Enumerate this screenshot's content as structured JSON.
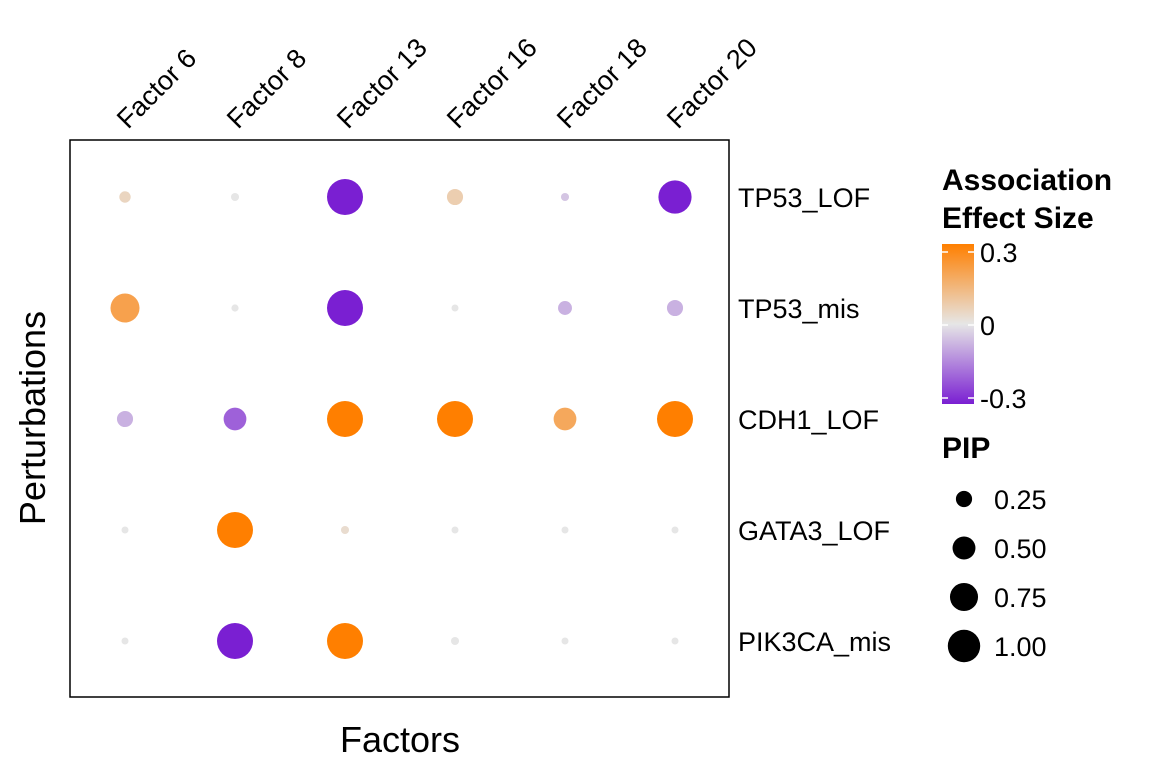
{
  "chart_data": {
    "type": "scatter",
    "subtype": "dot-matrix",
    "x_categories": [
      "Factor 6",
      "Factor 8",
      "Factor 13",
      "Factor 16",
      "Factor 18",
      "Factor 20"
    ],
    "y_categories": [
      "TP53_LOF",
      "TP53_mis",
      "CDH1_LOF",
      "GATA3_LOF",
      "PIK3CA_mis"
    ],
    "xlabel": "Factors",
    "ylabel": "Perturbations",
    "x_axis_position": "top",
    "y_axis_position": "right",
    "grid": false,
    "points": [
      {
        "x": "Factor 6",
        "y": "TP53_LOF",
        "effect": 0.05,
        "pip": 0.1
      },
      {
        "x": "Factor 8",
        "y": "TP53_LOF",
        "effect": 0.0,
        "pip": 0.05
      },
      {
        "x": "Factor 13",
        "y": "TP53_LOF",
        "effect": -0.3,
        "pip": 1.0
      },
      {
        "x": "Factor 16",
        "y": "TP53_LOF",
        "effect": 0.07,
        "pip": 0.2
      },
      {
        "x": "Factor 18",
        "y": "TP53_LOF",
        "effect": -0.05,
        "pip": 0.05
      },
      {
        "x": "Factor 20",
        "y": "TP53_LOF",
        "effect": -0.3,
        "pip": 0.85
      },
      {
        "x": "Factor 6",
        "y": "TP53_mis",
        "effect": 0.2,
        "pip": 0.65
      },
      {
        "x": "Factor 8",
        "y": "TP53_mis",
        "effect": 0.0,
        "pip": 0.04
      },
      {
        "x": "Factor 13",
        "y": "TP53_mis",
        "effect": -0.3,
        "pip": 1.0
      },
      {
        "x": "Factor 16",
        "y": "TP53_mis",
        "effect": 0.0,
        "pip": 0.03
      },
      {
        "x": "Factor 18",
        "y": "TP53_mis",
        "effect": -0.08,
        "pip": 0.15
      },
      {
        "x": "Factor 20",
        "y": "TP53_mis",
        "effect": -0.08,
        "pip": 0.2
      },
      {
        "x": "Factor 6",
        "y": "CDH1_LOF",
        "effect": -0.08,
        "pip": 0.2
      },
      {
        "x": "Factor 8",
        "y": "CDH1_LOF",
        "effect": -0.2,
        "pip": 0.4
      },
      {
        "x": "Factor 13",
        "y": "CDH1_LOF",
        "effect": 0.3,
        "pip": 1.0
      },
      {
        "x": "Factor 16",
        "y": "CDH1_LOF",
        "effect": 0.3,
        "pip": 1.0
      },
      {
        "x": "Factor 18",
        "y": "CDH1_LOF",
        "effect": 0.18,
        "pip": 0.4
      },
      {
        "x": "Factor 20",
        "y": "CDH1_LOF",
        "effect": 0.3,
        "pip": 1.0
      },
      {
        "x": "Factor 6",
        "y": "GATA3_LOF",
        "effect": 0.0,
        "pip": 0.03
      },
      {
        "x": "Factor 8",
        "y": "GATA3_LOF",
        "effect": 0.3,
        "pip": 1.0
      },
      {
        "x": "Factor 13",
        "y": "GATA3_LOF",
        "effect": 0.03,
        "pip": 0.05
      },
      {
        "x": "Factor 16",
        "y": "GATA3_LOF",
        "effect": 0.0,
        "pip": 0.03
      },
      {
        "x": "Factor 18",
        "y": "GATA3_LOF",
        "effect": 0.0,
        "pip": 0.03
      },
      {
        "x": "Factor 20",
        "y": "GATA3_LOF",
        "effect": 0.0,
        "pip": 0.03
      },
      {
        "x": "Factor 6",
        "y": "PIK3CA_mis",
        "effect": 0.0,
        "pip": 0.03
      },
      {
        "x": "Factor 8",
        "y": "PIK3CA_mis",
        "effect": -0.3,
        "pip": 1.0
      },
      {
        "x": "Factor 13",
        "y": "PIK3CA_mis",
        "effect": 0.3,
        "pip": 1.0
      },
      {
        "x": "Factor 16",
        "y": "PIK3CA_mis",
        "effect": 0.0,
        "pip": 0.05
      },
      {
        "x": "Factor 18",
        "y": "PIK3CA_mis",
        "effect": 0.0,
        "pip": 0.02
      },
      {
        "x": "Factor 20",
        "y": "PIK3CA_mis",
        "effect": 0.0,
        "pip": 0.02
      }
    ],
    "color_legend": {
      "title_line1": "Association",
      "title_line2": "Effect Size",
      "ticks": [
        {
          "value": 0.3,
          "label": "0.3"
        },
        {
          "value": 0,
          "label": "0"
        },
        {
          "value": -0.3,
          "label": "-0.3"
        }
      ],
      "range": [
        -0.3,
        0.3
      ],
      "low_color": "#7a1fd2",
      "mid_color": "#e6e6e6",
      "high_color": "#ff7f00"
    },
    "size_legend": {
      "title": "PIP",
      "entries": [
        {
          "value": 0.25,
          "label": "0.25"
        },
        {
          "value": 0.5,
          "label": "0.50"
        },
        {
          "value": 0.75,
          "label": "0.75"
        },
        {
          "value": 1.0,
          "label": "1.00"
        }
      ]
    }
  }
}
